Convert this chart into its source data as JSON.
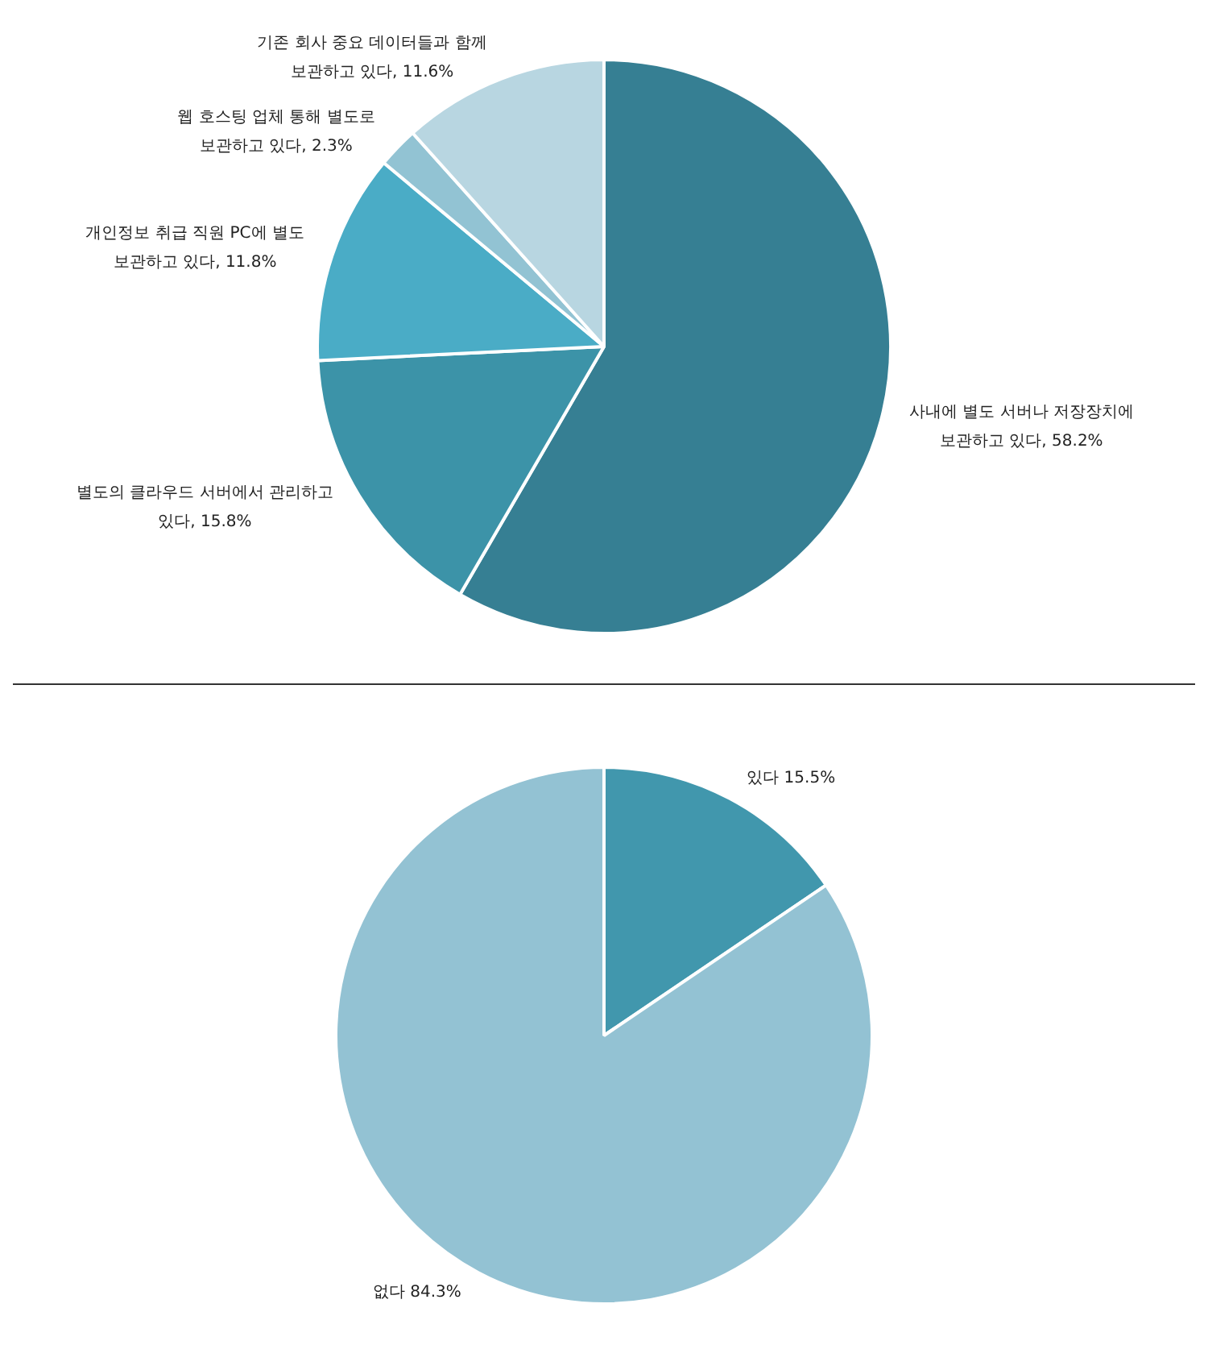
{
  "chart_data": [
    {
      "type": "pie",
      "categories": [
        "사내에 별도 서버나 저장장치에 보관하고 있다",
        "별도의 클라우드 서버에서 관리하고 있다",
        "개인정보 취급 직원 PC에 별도 보관하고 있다",
        "웹 호스팅 업체 통해 별도로 보관하고 있다",
        "기존 회사 중요 데이터들과 함께 보관하고 있다"
      ],
      "values": [
        58.2,
        15.8,
        11.8,
        2.3,
        11.6
      ],
      "colors": [
        "#367f93",
        "#3c93a8",
        "#4aacc6",
        "#92c3d3",
        "#b8d6e1"
      ],
      "value_labels": [
        "58.2%",
        "15.8%",
        "11.8%",
        "2.3%",
        "11.6%"
      ]
    },
    {
      "type": "pie",
      "categories": [
        "있다",
        "없다"
      ],
      "values": [
        15.5,
        84.3
      ],
      "colors": [
        "#4197ad",
        "#93c2d3"
      ],
      "value_labels": [
        "15.5%",
        "84.3%"
      ]
    }
  ]
}
